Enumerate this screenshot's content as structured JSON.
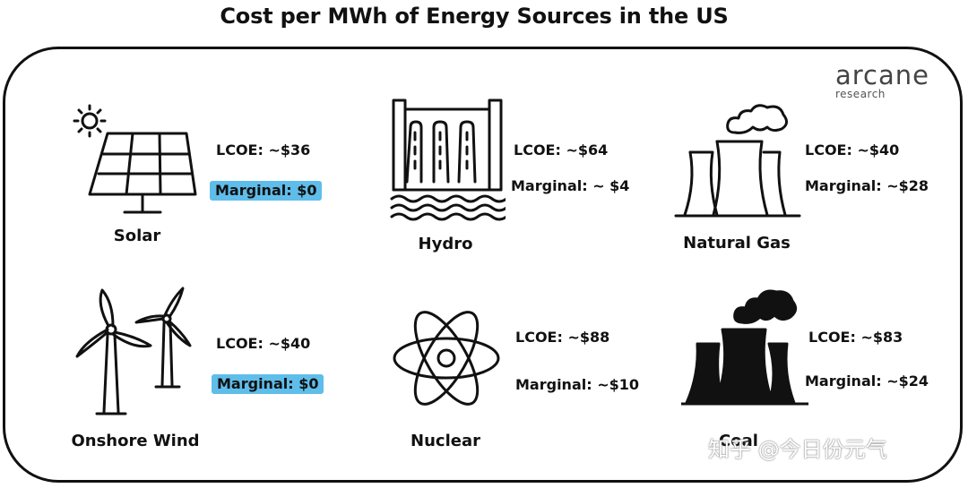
{
  "title": "Cost per MWh of Energy Sources in the US",
  "logo": {
    "main": "arcane",
    "sub": "research"
  },
  "sources": {
    "solar": {
      "name": "Solar",
      "lcoe": "LCOE: ~$36",
      "marginal": "Marginal: $0",
      "highlight": true
    },
    "hydro": {
      "name": "Hydro",
      "lcoe": "LCOE: ~$64",
      "marginal": "Marginal: ~ $4",
      "highlight": false
    },
    "gas": {
      "name": "Natural Gas",
      "lcoe": "LCOE: ~$40",
      "marginal": "Marginal: ~$28",
      "highlight": false
    },
    "wind": {
      "name": "Onshore Wind",
      "lcoe": "LCOE: ~$40",
      "marginal": "Marginal: $0",
      "highlight": true
    },
    "nuclear": {
      "name": "Nuclear",
      "lcoe": "LCOE: ~$88",
      "marginal": "Marginal: ~$10",
      "highlight": false
    },
    "coal": {
      "name": "Coal",
      "lcoe": "LCOE: ~$83",
      "marginal": "Marginal: ~$24",
      "highlight": false
    }
  },
  "colors": {
    "highlight": "#5fbdea",
    "ink": "#111111",
    "frame": "#111111"
  },
  "watermark": "知乎 @今日份元气"
}
